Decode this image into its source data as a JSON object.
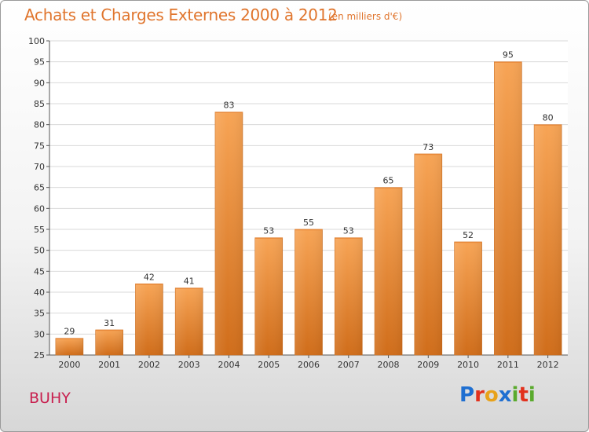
{
  "header": {
    "title": "Achats et Charges Externes 2000 à 2012",
    "unit": "(en milliers d'€)"
  },
  "footer": {
    "commune": "BUHY",
    "logo_letters": [
      {
        "ch": "P",
        "color": "#1f6fd1"
      },
      {
        "ch": "r",
        "color": "#e2311d"
      },
      {
        "ch": "o",
        "color": "#e8a21a"
      },
      {
        "ch": "x",
        "color": "#1f6fd1"
      },
      {
        "ch": "i",
        "color": "#5aaa2d"
      },
      {
        "ch": "t",
        "color": "#e2311d"
      },
      {
        "ch": "i",
        "color": "#5aaa2d"
      }
    ]
  },
  "colors": {
    "bar_top": "#f7a455",
    "bar_bottom": "#d06d1a",
    "accent": "#e0752d",
    "grid": "#d9d9d9"
  },
  "chart_data": {
    "type": "bar",
    "title": "Achats et Charges Externes 2000 à 2012",
    "subtitle": "(en milliers d'€)",
    "categories": [
      "2000",
      "2001",
      "2002",
      "2003",
      "2004",
      "2005",
      "2006",
      "2007",
      "2008",
      "2009",
      "2010",
      "2011",
      "2012"
    ],
    "values": [
      29,
      31,
      42,
      41,
      83,
      53,
      55,
      53,
      65,
      73,
      52,
      95,
      80
    ],
    "ylim": [
      25,
      100
    ],
    "yticks": [
      25,
      30,
      35,
      40,
      45,
      50,
      55,
      60,
      65,
      70,
      75,
      80,
      85,
      90,
      95,
      100
    ],
    "grid": true,
    "data_labels": true
  }
}
